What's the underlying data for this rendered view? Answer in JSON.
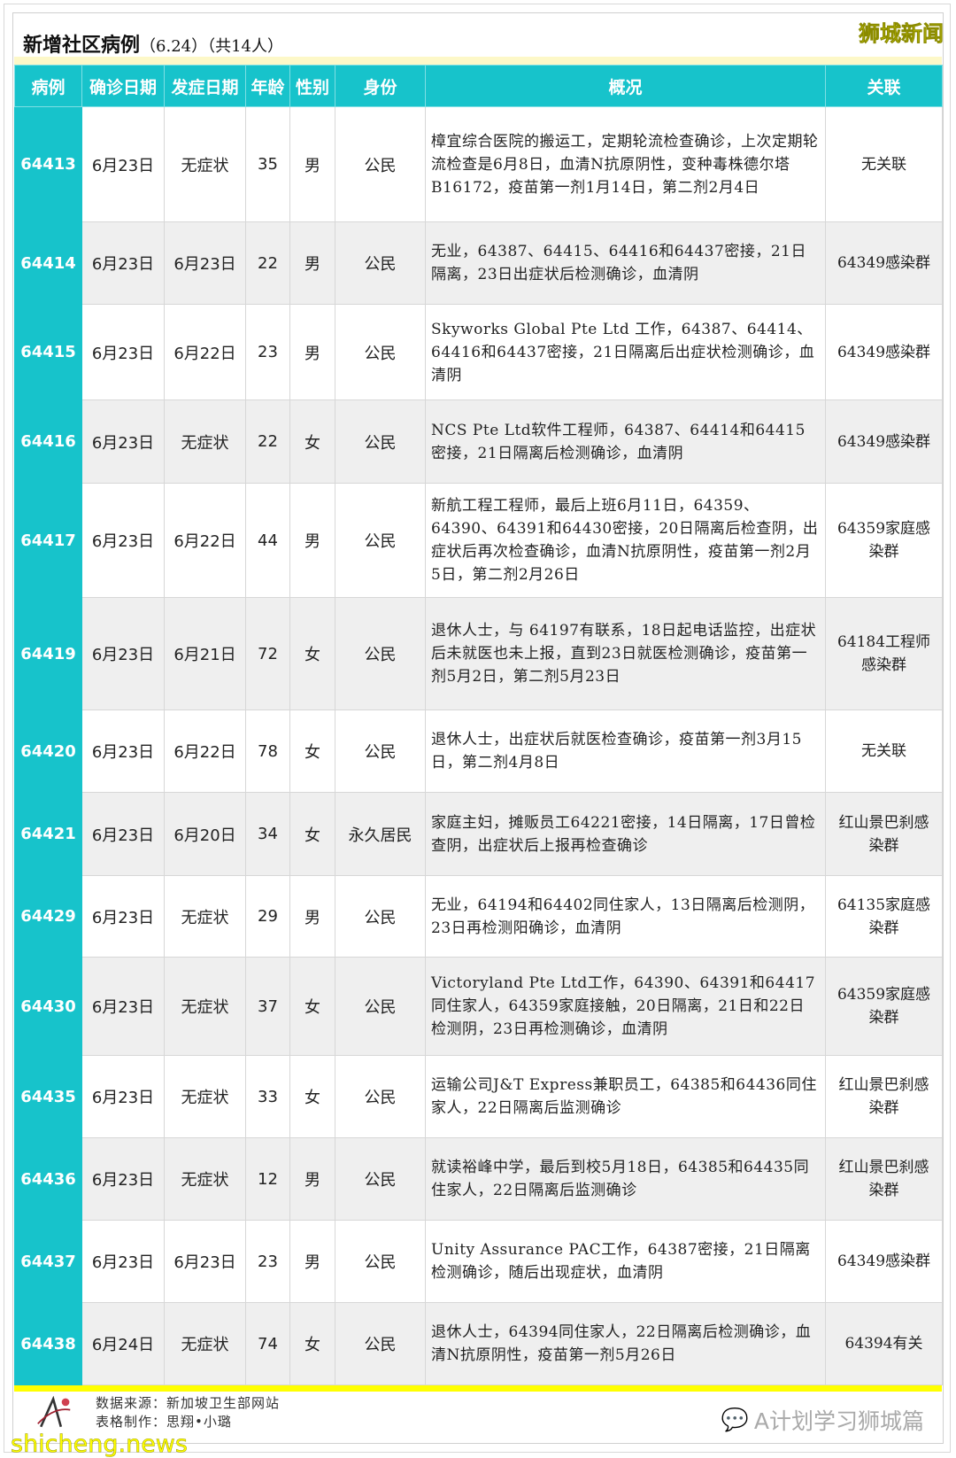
{
  "title": {
    "main": "新增社区病例",
    "date": "（6.24）",
    "count": "（共14人）"
  },
  "brand": "狮城新闻",
  "columns": [
    "病例",
    "确诊日期",
    "发症日期",
    "年龄",
    "性别",
    "身份",
    "概况",
    "关联"
  ],
  "rows": [
    {
      "id": "64413",
      "confirmed": "6月23日",
      "onset": "无症状",
      "age": "35",
      "sex": "男",
      "status": "公民",
      "summary": "樟宜综合医院的搬运工，定期轮流检查确诊，上次定期轮流检查是6月8日，血清N抗原阴性，变种毒株德尔塔B16172，疫苗第一剂1月14日，第二剂2月4日",
      "link": "无关联"
    },
    {
      "id": "64414",
      "confirmed": "6月23日",
      "onset": "6月23日",
      "age": "22",
      "sex": "男",
      "status": "公民",
      "summary": "无业，64387、64415、64416和64437密接，21日隔离，23日出症状后检测确诊，血清阴",
      "link": "64349感染群"
    },
    {
      "id": "64415",
      "confirmed": "6月23日",
      "onset": "6月22日",
      "age": "23",
      "sex": "男",
      "status": "公民",
      "summary": "Skyworks Global Pte Ltd 工作，64387、64414、64416和64437密接，21日隔离后出症状检测确诊，血清阴",
      "link": "64349感染群"
    },
    {
      "id": "64416",
      "confirmed": "6月23日",
      "onset": "无症状",
      "age": "22",
      "sex": "女",
      "status": "公民",
      "summary": "NCS Pte Ltd软件工程师，64387、64414和64415密接，21日隔离后检测确诊，血清阴",
      "link": "64349感染群"
    },
    {
      "id": "64417",
      "confirmed": "6月23日",
      "onset": "6月22日",
      "age": "44",
      "sex": "男",
      "status": "公民",
      "summary": "新航工程工程师，最后上班6月11日，64359、64390、64391和64430密接，20日隔离后检查阴，出症状后再次检查确诊，血清N抗原阴性，疫苗第一剂2月5日，第二剂2月26日",
      "link": "64359家庭感染群"
    },
    {
      "id": "64419",
      "confirmed": "6月23日",
      "onset": "6月21日",
      "age": "72",
      "sex": "女",
      "status": "公民",
      "summary": "退休人士，与 64197有联系，18日起电话监控，出症状后未就医也未上报，直到23日就医检测确诊，疫苗第一剂5月2日，第二剂5月23日",
      "link": "64184工程师感染群"
    },
    {
      "id": "64420",
      "confirmed": "6月23日",
      "onset": "6月22日",
      "age": "78",
      "sex": "女",
      "status": "公民",
      "summary": "退休人士，出症状后就医检查确诊，疫苗第一剂3月15日，第二剂4月8日",
      "link": "无关联"
    },
    {
      "id": "64421",
      "confirmed": "6月23日",
      "onset": "6月20日",
      "age": "34",
      "sex": "女",
      "status": "永久居民",
      "summary": "家庭主妇，摊贩员工64221密接，14日隔离，17日曾检查阴，出症状后上报再检查确诊",
      "link": "红山景巴刹感染群"
    },
    {
      "id": "64429",
      "confirmed": "6月23日",
      "onset": "无症状",
      "age": "29",
      "sex": "男",
      "status": "公民",
      "summary": "无业，64194和64402同住家人，13日隔离后检测阴，23日再检测阳确诊，血清阴",
      "link": "64135家庭感染群"
    },
    {
      "id": "64430",
      "confirmed": "6月23日",
      "onset": "无症状",
      "age": "37",
      "sex": "女",
      "status": "公民",
      "summary": "Victoryland Pte Ltd工作，64390、64391和64417同住家人，64359家庭接触，20日隔离，21日和22日检测阴，23日再检测确诊，血清阴",
      "link": "64359家庭感染群"
    },
    {
      "id": "64435",
      "confirmed": "6月23日",
      "onset": "无症状",
      "age": "33",
      "sex": "女",
      "status": "公民",
      "summary": "运输公司J&T Express兼职员工，64385和64436同住家人，22日隔离后监测确诊",
      "link": "红山景巴刹感染群"
    },
    {
      "id": "64436",
      "confirmed": "6月23日",
      "onset": "无症状",
      "age": "12",
      "sex": "男",
      "status": "公民",
      "summary": "就读裕峰中学，最后到校5月18日，64385和64435同住家人，22日隔离后监测确诊",
      "link": "红山景巴刹感染群"
    },
    {
      "id": "64437",
      "confirmed": "6月23日",
      "onset": "6月23日",
      "age": "23",
      "sex": "男",
      "status": "公民",
      "summary": "Unity Assurance PAC工作，64387密接，21日隔离检测确诊，随后出现症状，血清阴",
      "link": "64349感染群"
    },
    {
      "id": "64438",
      "confirmed": "6月24日",
      "onset": "无症状",
      "age": "74",
      "sex": "女",
      "status": "公民",
      "summary": "退休人士，64394同住家人，22日隔离后检测确诊，血清N抗原阴性，疫苗第一剂5月26日",
      "link": "64394有关"
    }
  ],
  "footer": {
    "source_label": "数据来源：",
    "source": "新加坡卫生部网站",
    "author_label": "表格制作：",
    "author": "思翔•小璐",
    "wechat": "A计划学习狮城篇",
    "watermark": "shicheng.news"
  },
  "colors": {
    "header": "#17c3cb",
    "highlight": "#ffff00",
    "alt_row": "#efefef"
  }
}
